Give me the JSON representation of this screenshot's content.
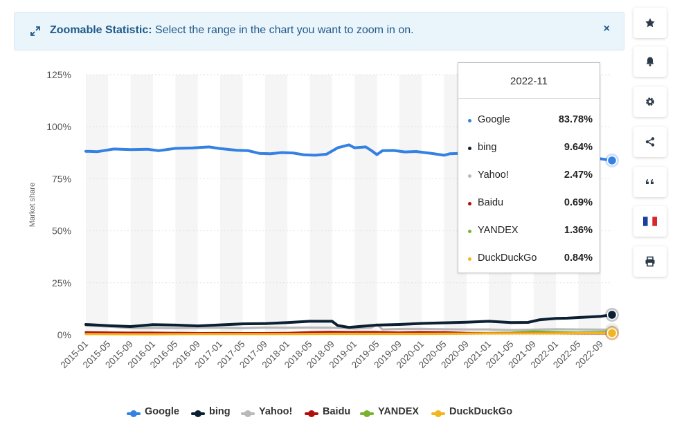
{
  "banner": {
    "title": "Zoomable Statistic:",
    "text": " Select the range in the chart you want to zoom in on.",
    "close": "×",
    "icon": "expand-arrows-icon"
  },
  "sidebar": [
    {
      "name": "favorite-button",
      "icon": "star-icon"
    },
    {
      "name": "notification-button",
      "icon": "bell-icon"
    },
    {
      "name": "settings-button",
      "icon": "gear-icon"
    },
    {
      "name": "share-button",
      "icon": "share-icon"
    },
    {
      "name": "cite-button",
      "icon": "quote-icon"
    },
    {
      "name": "language-button",
      "icon": "french-flag-icon"
    },
    {
      "name": "print-button",
      "icon": "printer-icon"
    }
  ],
  "tooltip": {
    "date": "2022-11",
    "rows": [
      {
        "name": "Google",
        "value": "83.78%",
        "color": "#3480e3"
      },
      {
        "name": "bing",
        "value": "9.64%",
        "color": "#0b2133"
      },
      {
        "name": "Yahoo!",
        "value": "2.47%",
        "color": "#b9b9b9"
      },
      {
        "name": "Baidu",
        "value": "0.69%",
        "color": "#b00d0d"
      },
      {
        "name": "YANDEX",
        "value": "1.36%",
        "color": "#7ab22e"
      },
      {
        "name": "DuckDuckGo",
        "value": "0.84%",
        "color": "#f2b51e"
      }
    ]
  },
  "chart_data": {
    "type": "line",
    "title": "",
    "ylabel": "Market share",
    "ylim": [
      0,
      125
    ],
    "yticks": [
      "0%",
      "25%",
      "50%",
      "75%",
      "100%",
      "125%"
    ],
    "ytick_values": [
      0,
      25,
      50,
      75,
      100,
      125
    ],
    "xlabels": [
      "2015-01",
      "2015-05",
      "2015-09",
      "2016-01",
      "2016-05",
      "2016-09",
      "2017-01",
      "2017-05",
      "2017-09",
      "2018-01",
      "2018-05",
      "2018-09",
      "2019-01",
      "2019-05",
      "2019-09",
      "2020-01",
      "2020-05",
      "2020-09",
      "2021-01",
      "2021-05",
      "2021-09",
      "2022-01",
      "2022-05",
      "2022-09"
    ],
    "x_start": "2015-01",
    "x_end": "2022-11",
    "grid": "alternating vertical bands",
    "legend": "bottom",
    "series": [
      {
        "name": "Google",
        "color": "#3480e3",
        "points": [
          [
            "2015-01",
            88.2
          ],
          [
            "2015-03",
            88.0
          ],
          [
            "2015-06",
            89.3
          ],
          [
            "2015-09",
            89.0
          ],
          [
            "2015-12",
            89.2
          ],
          [
            "2016-02",
            88.5
          ],
          [
            "2016-05",
            89.6
          ],
          [
            "2016-08",
            89.8
          ],
          [
            "2016-11",
            90.3
          ],
          [
            "2017-01",
            89.5
          ],
          [
            "2017-04",
            88.7
          ],
          [
            "2017-06",
            88.5
          ],
          [
            "2017-08",
            87.2
          ],
          [
            "2017-10",
            87.0
          ],
          [
            "2017-12",
            87.6
          ],
          [
            "2018-02",
            87.4
          ],
          [
            "2018-04",
            86.5
          ],
          [
            "2018-06",
            86.3
          ],
          [
            "2018-08",
            86.8
          ],
          [
            "2018-10",
            89.9
          ],
          [
            "2018-12",
            91.3
          ],
          [
            "2019-01",
            89.9
          ],
          [
            "2019-03",
            90.3
          ],
          [
            "2019-04",
            88.6
          ],
          [
            "2019-05",
            86.6
          ],
          [
            "2019-06",
            88.5
          ],
          [
            "2019-08",
            88.6
          ],
          [
            "2019-10",
            87.9
          ],
          [
            "2019-12",
            88.1
          ],
          [
            "2020-03",
            87.1
          ],
          [
            "2020-05",
            86.3
          ],
          [
            "2020-06",
            87.0
          ],
          [
            "2020-09",
            87.3
          ],
          [
            "2020-12",
            87.1
          ],
          [
            "2021-01",
            87.2
          ],
          [
            "2021-05",
            87.5
          ],
          [
            "2021-08",
            87.0
          ],
          [
            "2021-11",
            86.5
          ],
          [
            "2022-02",
            86.2
          ],
          [
            "2022-05",
            85.4
          ],
          [
            "2022-08",
            85.0
          ],
          [
            "2022-11",
            83.78
          ]
        ]
      },
      {
        "name": "bing",
        "color": "#0b2133",
        "points": [
          [
            "2015-01",
            5.0
          ],
          [
            "2015-05",
            4.4
          ],
          [
            "2015-09",
            4.0
          ],
          [
            "2016-01",
            4.9
          ],
          [
            "2016-05",
            4.7
          ],
          [
            "2016-09",
            4.3
          ],
          [
            "2017-01",
            4.8
          ],
          [
            "2017-05",
            5.3
          ],
          [
            "2017-09",
            5.4
          ],
          [
            "2018-01",
            5.9
          ],
          [
            "2018-05",
            6.5
          ],
          [
            "2018-09",
            6.5
          ],
          [
            "2018-10",
            4.5
          ],
          [
            "2018-12",
            3.6
          ],
          [
            "2019-05",
            4.7
          ],
          [
            "2019-09",
            5.0
          ],
          [
            "2020-01",
            5.5
          ],
          [
            "2020-05",
            5.8
          ],
          [
            "2020-09",
            6.1
          ],
          [
            "2021-01",
            6.5
          ],
          [
            "2021-05",
            5.9
          ],
          [
            "2021-08",
            6.0
          ],
          [
            "2021-10",
            7.2
          ],
          [
            "2022-01",
            7.9
          ],
          [
            "2022-03",
            8.0
          ],
          [
            "2022-05",
            8.3
          ],
          [
            "2022-09",
            8.9
          ],
          [
            "2022-11",
            9.64
          ]
        ]
      },
      {
        "name": "Yahoo!",
        "color": "#b9b9b9",
        "points": [
          [
            "2015-01",
            4.5
          ],
          [
            "2015-05",
            4.0
          ],
          [
            "2015-09",
            3.3
          ],
          [
            "2016-01",
            3.3
          ],
          [
            "2016-05",
            3.2
          ],
          [
            "2016-09",
            3.4
          ],
          [
            "2017-01",
            3.4
          ],
          [
            "2017-05",
            3.2
          ],
          [
            "2017-09",
            3.5
          ],
          [
            "2018-01",
            3.4
          ],
          [
            "2018-05",
            3.5
          ],
          [
            "2018-09",
            3.4
          ],
          [
            "2019-01",
            3.0
          ],
          [
            "2019-04",
            3.5
          ],
          [
            "2019-05",
            5.0
          ],
          [
            "2019-06",
            2.6
          ],
          [
            "2019-09",
            2.8
          ],
          [
            "2020-01",
            2.9
          ],
          [
            "2020-05",
            2.7
          ],
          [
            "2020-09",
            2.6
          ],
          [
            "2021-01",
            2.6
          ],
          [
            "2021-05",
            2.3
          ],
          [
            "2021-09",
            2.5
          ],
          [
            "2022-01",
            2.7
          ],
          [
            "2022-05",
            2.6
          ],
          [
            "2022-11",
            2.47
          ]
        ]
      },
      {
        "name": "Baidu",
        "color": "#b00d0d",
        "points": [
          [
            "2015-01",
            1.2
          ],
          [
            "2015-05",
            1.1
          ],
          [
            "2015-09",
            1.0
          ],
          [
            "2016-01",
            1.0
          ],
          [
            "2016-05",
            0.9
          ],
          [
            "2016-09",
            0.8
          ],
          [
            "2017-01",
            0.8
          ],
          [
            "2017-09",
            0.8
          ],
          [
            "2018-01",
            0.9
          ],
          [
            "2018-05",
            1.2
          ],
          [
            "2018-09",
            1.4
          ],
          [
            "2019-01",
            1.3
          ],
          [
            "2019-05",
            1.3
          ],
          [
            "2019-09",
            1.1
          ],
          [
            "2020-01",
            1.3
          ],
          [
            "2020-05",
            1.2
          ],
          [
            "2020-09",
            0.9
          ],
          [
            "2021-01",
            0.8
          ],
          [
            "2021-09",
            0.8
          ],
          [
            "2022-01",
            0.7
          ],
          [
            "2022-11",
            0.69
          ]
        ]
      },
      {
        "name": "YANDEX",
        "color": "#7ab22e",
        "points": [
          [
            "2015-01",
            0.9
          ],
          [
            "2015-05",
            0.8
          ],
          [
            "2015-09",
            0.9
          ],
          [
            "2016-01",
            0.8
          ],
          [
            "2016-05",
            0.9
          ],
          [
            "2016-09",
            0.8
          ],
          [
            "2017-01",
            0.9
          ],
          [
            "2017-09",
            0.7
          ],
          [
            "2018-01",
            0.8
          ],
          [
            "2018-09",
            0.7
          ],
          [
            "2019-01",
            0.7
          ],
          [
            "2019-09",
            0.8
          ],
          [
            "2020-01",
            0.8
          ],
          [
            "2020-09",
            0.8
          ],
          [
            "2021-01",
            0.9
          ],
          [
            "2021-05",
            1.0
          ],
          [
            "2021-09",
            1.6
          ],
          [
            "2022-01",
            1.3
          ],
          [
            "2022-05",
            1.1
          ],
          [
            "2022-11",
            1.36
          ]
        ]
      },
      {
        "name": "DuckDuckGo",
        "color": "#f2b51e",
        "points": [
          [
            "2015-01",
            0.4
          ],
          [
            "2015-09",
            0.3
          ],
          [
            "2016-01",
            0.3
          ],
          [
            "2016-09",
            0.4
          ],
          [
            "2017-01",
            0.4
          ],
          [
            "2017-09",
            0.4
          ],
          [
            "2018-01",
            0.4
          ],
          [
            "2018-09",
            0.5
          ],
          [
            "2019-01",
            0.5
          ],
          [
            "2019-09",
            0.5
          ],
          [
            "2020-01",
            0.5
          ],
          [
            "2020-09",
            0.6
          ],
          [
            "2021-01",
            0.7
          ],
          [
            "2021-09",
            0.7
          ],
          [
            "2022-01",
            0.7
          ],
          [
            "2022-05",
            0.8
          ],
          [
            "2022-11",
            0.84
          ]
        ]
      }
    ]
  }
}
